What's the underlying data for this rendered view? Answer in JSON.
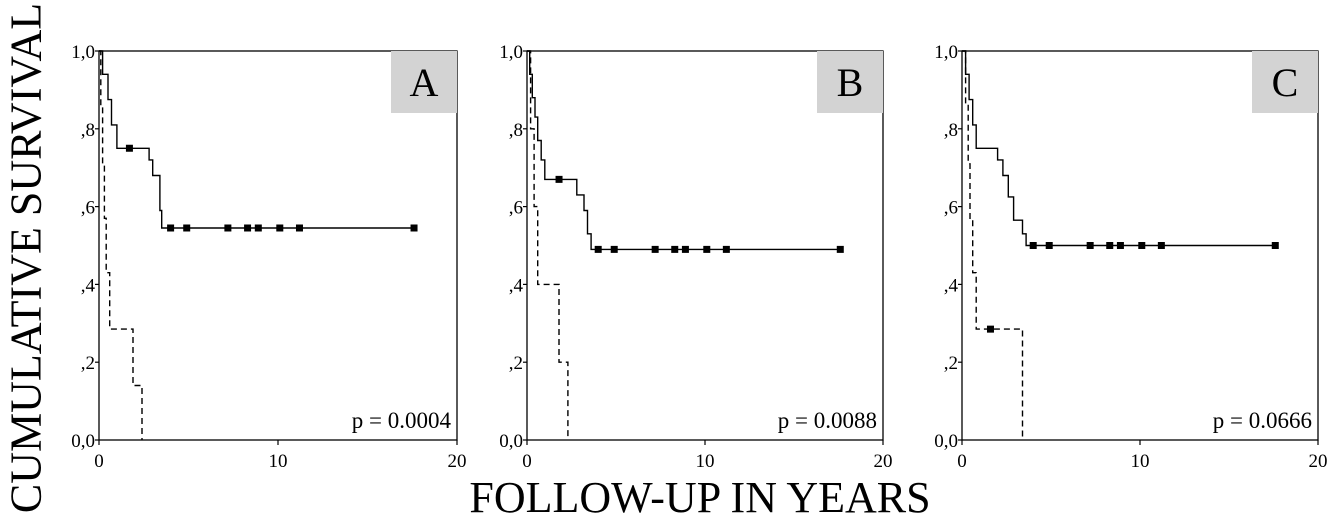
{
  "figure": {
    "ylabel": "CUMULATIVE SURVIVAL",
    "xlabel": "FOLLOW-UP IN YEARS"
  },
  "chart_data": [
    {
      "type": "line",
      "panel_label": "A",
      "pvalue": "p = 0.0004",
      "xlim": [
        0,
        20
      ],
      "ylim": [
        0,
        1
      ],
      "xticks": [
        0,
        10,
        20
      ],
      "xtick_labels": [
        "0",
        "10",
        "20"
      ],
      "yticks": [
        0,
        0.2,
        0.4,
        0.6,
        0.8,
        1.0
      ],
      "ytick_labels": [
        "0,0",
        ",2",
        ",4",
        ",6",
        ",8",
        "1,0"
      ],
      "grid": false,
      "series": [
        {
          "style": "solid",
          "steps": [
            [
              0,
              1.0
            ],
            [
              0.2,
              0.94
            ],
            [
              0.5,
              0.875
            ],
            [
              0.7,
              0.81
            ],
            [
              1.0,
              0.75
            ],
            [
              2.8,
              0.75
            ],
            [
              2.8,
              0.72
            ],
            [
              3.0,
              0.68
            ],
            [
              3.4,
              0.59
            ],
            [
              3.5,
              0.545
            ],
            [
              17.6,
              0.545
            ]
          ],
          "censored": [
            [
              1.7,
              0.75
            ],
            [
              4.0,
              0.545
            ],
            [
              4.9,
              0.545
            ],
            [
              7.2,
              0.545
            ],
            [
              8.3,
              0.545
            ],
            [
              8.9,
              0.545
            ],
            [
              10.1,
              0.545
            ],
            [
              11.2,
              0.545
            ],
            [
              17.6,
              0.545
            ]
          ]
        },
        {
          "style": "dashed",
          "steps": [
            [
              0,
              1.0
            ],
            [
              0.1,
              0.86
            ],
            [
              0.2,
              0.71
            ],
            [
              0.3,
              0.57
            ],
            [
              0.4,
              0.43
            ],
            [
              0.6,
              0.285
            ],
            [
              1.9,
              0.285
            ],
            [
              1.9,
              0.14
            ],
            [
              2.4,
              0.14
            ],
            [
              2.4,
              0.0
            ]
          ],
          "censored": []
        }
      ]
    },
    {
      "type": "line",
      "panel_label": "B",
      "pvalue": "p = 0.0088",
      "xlim": [
        0,
        20
      ],
      "ylim": [
        0,
        1
      ],
      "xticks": [
        0,
        10,
        20
      ],
      "xtick_labels": [
        "0",
        "10",
        "20"
      ],
      "yticks": [
        0,
        0.2,
        0.4,
        0.6,
        0.8,
        1.0
      ],
      "ytick_labels": [
        "0,0",
        ",2",
        ",4",
        ",6",
        ",8",
        "1,0"
      ],
      "grid": false,
      "series": [
        {
          "style": "solid",
          "steps": [
            [
              0,
              1.0
            ],
            [
              0.15,
              0.94
            ],
            [
              0.3,
              0.88
            ],
            [
              0.45,
              0.83
            ],
            [
              0.6,
              0.77
            ],
            [
              0.8,
              0.72
            ],
            [
              1.0,
              0.67
            ],
            [
              2.8,
              0.67
            ],
            [
              2.8,
              0.63
            ],
            [
              3.2,
              0.59
            ],
            [
              3.4,
              0.53
            ],
            [
              3.6,
              0.49
            ],
            [
              17.6,
              0.49
            ]
          ],
          "censored": [
            [
              1.8,
              0.67
            ],
            [
              4.0,
              0.49
            ],
            [
              4.9,
              0.49
            ],
            [
              7.2,
              0.49
            ],
            [
              8.3,
              0.49
            ],
            [
              8.9,
              0.49
            ],
            [
              10.1,
              0.49
            ],
            [
              11.2,
              0.49
            ],
            [
              17.6,
              0.49
            ]
          ]
        },
        {
          "style": "dashed",
          "steps": [
            [
              0,
              1.0
            ],
            [
              0.2,
              0.8
            ],
            [
              0.4,
              0.6
            ],
            [
              0.6,
              0.4
            ],
            [
              1.8,
              0.4
            ],
            [
              1.8,
              0.2
            ],
            [
              2.3,
              0.2
            ],
            [
              2.3,
              0.0
            ]
          ],
          "censored": []
        }
      ]
    },
    {
      "type": "line",
      "panel_label": "C",
      "pvalue": "p = 0.0666",
      "xlim": [
        0,
        20
      ],
      "ylim": [
        0,
        1
      ],
      "xticks": [
        0,
        10,
        20
      ],
      "xtick_labels": [
        "0",
        "10",
        "20"
      ],
      "yticks": [
        0,
        0.2,
        0.4,
        0.6,
        0.8,
        1.0
      ],
      "ytick_labels": [
        "0,0",
        ",2",
        ",4",
        ",6",
        ",8",
        "1,0"
      ],
      "grid": false,
      "series": [
        {
          "style": "solid",
          "steps": [
            [
              0,
              1.0
            ],
            [
              0.2,
              0.94
            ],
            [
              0.4,
              0.875
            ],
            [
              0.6,
              0.81
            ],
            [
              0.8,
              0.75
            ],
            [
              2.0,
              0.75
            ],
            [
              2.0,
              0.72
            ],
            [
              2.3,
              0.68
            ],
            [
              2.6,
              0.625
            ],
            [
              2.9,
              0.565
            ],
            [
              3.4,
              0.53
            ],
            [
              3.6,
              0.5
            ],
            [
              17.6,
              0.5
            ]
          ],
          "censored": [
            [
              4.0,
              0.5
            ],
            [
              4.9,
              0.5
            ],
            [
              7.2,
              0.5
            ],
            [
              8.3,
              0.5
            ],
            [
              8.9,
              0.5
            ],
            [
              10.1,
              0.5
            ],
            [
              11.2,
              0.5
            ],
            [
              17.6,
              0.5
            ]
          ]
        },
        {
          "style": "dashed",
          "steps": [
            [
              0,
              1.0
            ],
            [
              0.2,
              0.86
            ],
            [
              0.35,
              0.71
            ],
            [
              0.45,
              0.57
            ],
            [
              0.6,
              0.43
            ],
            [
              0.8,
              0.285
            ],
            [
              3.4,
              0.285
            ],
            [
              3.4,
              0.0
            ]
          ],
          "censored": [
            [
              1.6,
              0.285
            ]
          ]
        }
      ]
    }
  ]
}
